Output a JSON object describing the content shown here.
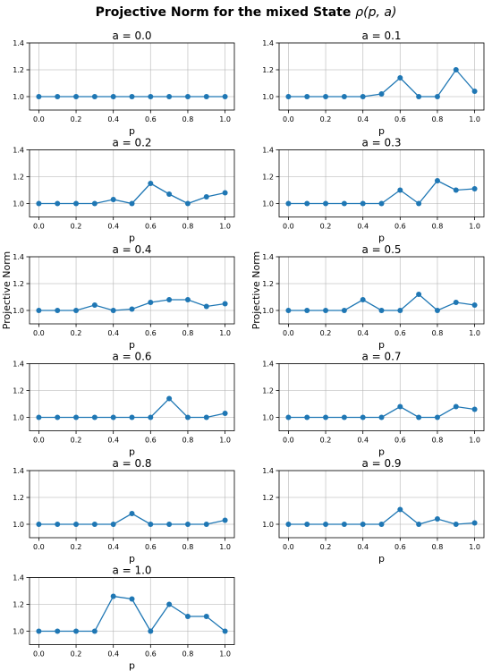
{
  "figure": {
    "suptitle_prefix": "Projective Norm for the mixed State ",
    "suptitle_math": "ρ(p, a)",
    "ylabel": "Projective Norm",
    "line_color": "#1f77b4"
  },
  "chart_data": [
    {
      "type": "line",
      "title": "a = 0.0",
      "xlabel": "p",
      "ylabel": "",
      "ylim": [
        0.9,
        1.4
      ],
      "xlim": [
        -0.05,
        1.05
      ],
      "grid": true,
      "x": [
        0.0,
        0.1,
        0.2,
        0.3,
        0.4,
        0.5,
        0.6,
        0.7,
        0.8,
        0.9,
        1.0
      ],
      "y": [
        1.0,
        1.0,
        1.0,
        1.0,
        1.0,
        1.0,
        1.0,
        1.0,
        1.0,
        1.0,
        1.0
      ],
      "xticks": [
        "0.0",
        "0.2",
        "0.4",
        "0.6",
        "0.8",
        "1.0"
      ],
      "yticks": [
        "1.0",
        "1.2",
        "1.4"
      ]
    },
    {
      "type": "line",
      "title": "a = 0.1",
      "xlabel": "p",
      "ylabel": "",
      "ylim": [
        0.9,
        1.4
      ],
      "xlim": [
        -0.05,
        1.05
      ],
      "grid": true,
      "x": [
        0.0,
        0.1,
        0.2,
        0.3,
        0.4,
        0.5,
        0.6,
        0.7,
        0.8,
        0.9,
        1.0
      ],
      "y": [
        1.0,
        1.0,
        1.0,
        1.0,
        1.0,
        1.02,
        1.14,
        1.0,
        1.0,
        1.2,
        1.04
      ],
      "xticks": [
        "0.0",
        "0.2",
        "0.4",
        "0.6",
        "0.8",
        "1.0"
      ],
      "yticks": [
        "1.0",
        "1.2",
        "1.4"
      ]
    },
    {
      "type": "line",
      "title": "a = 0.2",
      "xlabel": "p",
      "ylabel": "",
      "ylim": [
        0.9,
        1.4
      ],
      "xlim": [
        -0.05,
        1.05
      ],
      "grid": true,
      "x": [
        0.0,
        0.1,
        0.2,
        0.3,
        0.4,
        0.5,
        0.6,
        0.7,
        0.8,
        0.9,
        1.0
      ],
      "y": [
        1.0,
        1.0,
        1.0,
        1.0,
        1.03,
        1.0,
        1.15,
        1.07,
        1.0,
        1.05,
        1.08
      ],
      "xticks": [
        "0.0",
        "0.2",
        "0.4",
        "0.6",
        "0.8",
        "1.0"
      ],
      "yticks": [
        "1.0",
        "1.2",
        "1.4"
      ]
    },
    {
      "type": "line",
      "title": "a = 0.3",
      "xlabel": "p",
      "ylabel": "",
      "ylim": [
        0.9,
        1.4
      ],
      "xlim": [
        -0.05,
        1.05
      ],
      "grid": true,
      "x": [
        0.0,
        0.1,
        0.2,
        0.3,
        0.4,
        0.5,
        0.6,
        0.7,
        0.8,
        0.9,
        1.0
      ],
      "y": [
        1.0,
        1.0,
        1.0,
        1.0,
        1.0,
        1.0,
        1.1,
        1.0,
        1.17,
        1.1,
        1.11
      ],
      "xticks": [
        "0.0",
        "0.2",
        "0.4",
        "0.6",
        "0.8",
        "1.0"
      ],
      "yticks": [
        "1.0",
        "1.2",
        "1.4"
      ]
    },
    {
      "type": "line",
      "title": "a = 0.4",
      "xlabel": "p",
      "ylabel": "Projective Norm",
      "ylim": [
        0.9,
        1.4
      ],
      "xlim": [
        -0.05,
        1.05
      ],
      "grid": true,
      "x": [
        0.0,
        0.1,
        0.2,
        0.3,
        0.4,
        0.5,
        0.6,
        0.7,
        0.8,
        0.9,
        1.0
      ],
      "y": [
        1.0,
        1.0,
        1.0,
        1.04,
        1.0,
        1.01,
        1.06,
        1.08,
        1.08,
        1.03,
        1.05
      ],
      "xticks": [
        "0.0",
        "0.2",
        "0.4",
        "0.6",
        "0.8",
        "1.0"
      ],
      "yticks": [
        "1.0",
        "1.2",
        "1.4"
      ]
    },
    {
      "type": "line",
      "title": "a = 0.5",
      "xlabel": "p",
      "ylabel": "Projective Norm",
      "ylim": [
        0.9,
        1.4
      ],
      "xlim": [
        -0.05,
        1.05
      ],
      "grid": true,
      "x": [
        0.0,
        0.1,
        0.2,
        0.3,
        0.4,
        0.5,
        0.6,
        0.7,
        0.8,
        0.9,
        1.0
      ],
      "y": [
        1.0,
        1.0,
        1.0,
        1.0,
        1.08,
        1.0,
        1.0,
        1.12,
        1.0,
        1.06,
        1.04
      ],
      "xticks": [
        "0.0",
        "0.2",
        "0.4",
        "0.6",
        "0.8",
        "1.0"
      ],
      "yticks": [
        "1.0",
        "1.2",
        "1.4"
      ]
    },
    {
      "type": "line",
      "title": "a = 0.6",
      "xlabel": "p",
      "ylabel": "",
      "ylim": [
        0.9,
        1.4
      ],
      "xlim": [
        -0.05,
        1.05
      ],
      "grid": true,
      "x": [
        0.0,
        0.1,
        0.2,
        0.3,
        0.4,
        0.5,
        0.6,
        0.7,
        0.8,
        0.9,
        1.0
      ],
      "y": [
        1.0,
        1.0,
        1.0,
        1.0,
        1.0,
        1.0,
        1.0,
        1.14,
        1.0,
        1.0,
        1.03
      ],
      "xticks": [
        "0.0",
        "0.2",
        "0.4",
        "0.6",
        "0.8",
        "1.0"
      ],
      "yticks": [
        "1.0",
        "1.2",
        "1.4"
      ]
    },
    {
      "type": "line",
      "title": "a = 0.7",
      "xlabel": "p",
      "ylabel": "",
      "ylim": [
        0.9,
        1.4
      ],
      "xlim": [
        -0.05,
        1.05
      ],
      "grid": true,
      "x": [
        0.0,
        0.1,
        0.2,
        0.3,
        0.4,
        0.5,
        0.6,
        0.7,
        0.8,
        0.9,
        1.0
      ],
      "y": [
        1.0,
        1.0,
        1.0,
        1.0,
        1.0,
        1.0,
        1.08,
        1.0,
        1.0,
        1.08,
        1.06
      ],
      "xticks": [
        "0.0",
        "0.2",
        "0.4",
        "0.6",
        "0.8",
        "1.0"
      ],
      "yticks": [
        "1.0",
        "1.2",
        "1.4"
      ]
    },
    {
      "type": "line",
      "title": "a = 0.8",
      "xlabel": "p",
      "ylabel": "",
      "ylim": [
        0.9,
        1.4
      ],
      "xlim": [
        -0.05,
        1.05
      ],
      "grid": true,
      "x": [
        0.0,
        0.1,
        0.2,
        0.3,
        0.4,
        0.5,
        0.6,
        0.7,
        0.8,
        0.9,
        1.0
      ],
      "y": [
        1.0,
        1.0,
        1.0,
        1.0,
        1.0,
        1.08,
        1.0,
        1.0,
        1.0,
        1.0,
        1.03
      ],
      "xticks": [
        "0.0",
        "0.2",
        "0.4",
        "0.6",
        "0.8",
        "1.0"
      ],
      "yticks": [
        "1.0",
        "1.2",
        "1.4"
      ]
    },
    {
      "type": "line",
      "title": "a = 0.9",
      "xlabel": "p",
      "ylabel": "",
      "ylim": [
        0.9,
        1.4
      ],
      "xlim": [
        -0.05,
        1.05
      ],
      "grid": true,
      "x": [
        0.0,
        0.1,
        0.2,
        0.3,
        0.4,
        0.5,
        0.6,
        0.7,
        0.8,
        0.9,
        1.0
      ],
      "y": [
        1.0,
        1.0,
        1.0,
        1.0,
        1.0,
        1.0,
        1.11,
        1.0,
        1.04,
        1.0,
        1.01
      ],
      "xticks": [
        "0.0",
        "0.2",
        "0.4",
        "0.6",
        "0.8",
        "1.0"
      ],
      "yticks": [
        "1.0",
        "1.2",
        "1.4"
      ]
    },
    {
      "type": "line",
      "title": "a = 1.0",
      "xlabel": "p",
      "ylabel": "",
      "ylim": [
        0.9,
        1.4
      ],
      "xlim": [
        -0.05,
        1.05
      ],
      "grid": true,
      "x": [
        0.0,
        0.1,
        0.2,
        0.3,
        0.4,
        0.5,
        0.6,
        0.7,
        0.8,
        0.9,
        1.0
      ],
      "y": [
        1.0,
        1.0,
        1.0,
        1.0,
        1.26,
        1.24,
        1.0,
        1.2,
        1.11,
        1.11,
        1.0
      ],
      "xticks": [
        "0.0",
        "0.2",
        "0.4",
        "0.6",
        "0.8",
        "1.0"
      ],
      "yticks": [
        "1.0",
        "1.2",
        "1.4"
      ]
    }
  ]
}
